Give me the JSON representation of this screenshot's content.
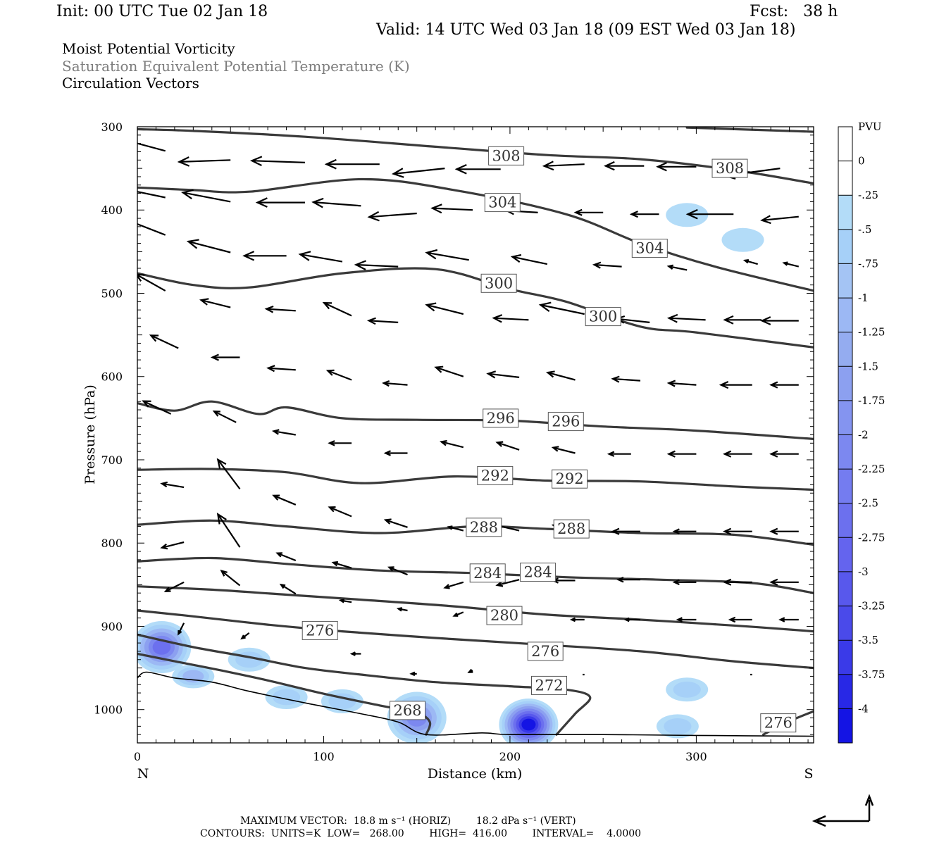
{
  "header": {
    "init": "Init: 00 UTC Tue 02 Jan 18",
    "fcst": "Fcst:   38 h",
    "valid": "Valid: 14 UTC Wed 03 Jan 18 (09 EST Wed 03 Jan 18)"
  },
  "titles": {
    "line1": "Moist Potential Vorticity",
    "line2": "Saturation Equivalent Potential Temperature (K)",
    "line3": "Circulation Vectors"
  },
  "colors": {
    "contour": "#3a3a3a",
    "pv_light": "#b3dcf8",
    "pv_mid": "#96b4f0",
    "pv_strong": "#5a6af0",
    "pv_max": "#1a1ae6"
  },
  "chart_data": {
    "type": "cross-section",
    "xlabel": "Distance (km)",
    "ylabel": "Pressure (hPa)",
    "xlim": [
      0,
      363
    ],
    "ylim": [
      1040,
      300
    ],
    "y_scale": "linear, pressure decreasing upward",
    "x_ticks": [
      "0",
      "100",
      "200",
      "300"
    ],
    "y_ticks": [
      "300",
      "400",
      "500",
      "600",
      "700",
      "800",
      "900",
      "1000"
    ],
    "end_labels": {
      "left": "N",
      "right": "S"
    },
    "colorbar": {
      "title": "PVU",
      "labels": [
        "0",
        "-.25",
        "-.5",
        "-.75",
        "-1",
        "-1.25",
        "-1.5",
        "-1.75",
        "-2",
        "-2.25",
        "-2.5",
        "-2.75",
        "-3",
        "-3.25",
        "-3.5",
        "-3.75",
        "-4"
      ],
      "colors": [
        "#ffffff",
        "#ffffff",
        "#b3dcf8",
        "#a6d0f8",
        "#a4c4f4",
        "#9cb8f4",
        "#94acf0",
        "#8ca0f0",
        "#8494f0",
        "#7c88f0",
        "#747cf0",
        "#6c70ee",
        "#6464ee",
        "#5858ec",
        "#4a4aea",
        "#3a3ae8",
        "#2828e6",
        "#1414e4"
      ]
    },
    "terrain_pressure": [
      [
        0,
        962
      ],
      [
        5,
        955
      ],
      [
        20,
        962
      ],
      [
        40,
        967
      ],
      [
        60,
        978
      ],
      [
        90,
        992
      ],
      [
        120,
        1005
      ],
      [
        140,
        1015
      ],
      [
        155,
        1030
      ],
      [
        185,
        1028
      ],
      [
        200,
        1030
      ],
      [
        250,
        1030
      ],
      [
        300,
        1031
      ],
      [
        363,
        1032
      ]
    ],
    "theta_e_contours": [
      {
        "value": 308,
        "labels": [
          "308",
          "308"
        ],
        "points": [
          [
            0,
            303
          ],
          [
            30,
            305
          ],
          [
            90,
            312
          ],
          [
            160,
            324
          ],
          [
            220,
            334
          ],
          [
            270,
            339
          ],
          [
            320,
            352
          ],
          [
            363,
            368
          ]
        ]
      },
      {
        "value": 308,
        "labels": [],
        "points": [
          [
            295,
            301
          ],
          [
            363,
            306
          ]
        ]
      },
      {
        "value": 304,
        "labels": [
          "304",
          "304"
        ],
        "points": [
          [
            0,
            373
          ],
          [
            30,
            376
          ],
          [
            60,
            378
          ],
          [
            120,
            363
          ],
          [
            170,
            376
          ],
          [
            230,
            405
          ],
          [
            270,
            440
          ],
          [
            310,
            468
          ],
          [
            363,
            497
          ]
        ]
      },
      {
        "value": 300,
        "labels": [
          "300",
          "300"
        ],
        "points": [
          [
            0,
            476
          ],
          [
            30,
            490
          ],
          [
            60,
            493
          ],
          [
            110,
            476
          ],
          [
            160,
            471
          ],
          [
            200,
            495
          ],
          [
            230,
            510
          ],
          [
            270,
            540
          ],
          [
            300,
            547
          ],
          [
            363,
            565
          ]
        ]
      },
      {
        "value": 296,
        "labels": [
          "296",
          "296"
        ],
        "points": [
          [
            0,
            632
          ],
          [
            20,
            641
          ],
          [
            40,
            630
          ],
          [
            65,
            645
          ],
          [
            80,
            637
          ],
          [
            110,
            650
          ],
          [
            150,
            652
          ],
          [
            200,
            653
          ],
          [
            250,
            660
          ],
          [
            300,
            665
          ],
          [
            363,
            675
          ]
        ]
      },
      {
        "value": 292,
        "labels": [
          "292",
          "292"
        ],
        "points": [
          [
            0,
            712
          ],
          [
            40,
            711
          ],
          [
            80,
            715
          ],
          [
            120,
            728
          ],
          [
            170,
            720
          ],
          [
            220,
            725
          ],
          [
            270,
            726
          ],
          [
            320,
            732
          ],
          [
            363,
            736
          ]
        ]
      },
      {
        "value": 288,
        "labels": [
          "288",
          "288"
        ],
        "points": [
          [
            0,
            778
          ],
          [
            40,
            773
          ],
          [
            80,
            780
          ],
          [
            130,
            788
          ],
          [
            180,
            780
          ],
          [
            220,
            783
          ],
          [
            270,
            788
          ],
          [
            320,
            790
          ],
          [
            363,
            802
          ]
        ]
      },
      {
        "value": 284,
        "labels": [
          "284",
          "284"
        ],
        "points": [
          [
            0,
            822
          ],
          [
            40,
            818
          ],
          [
            80,
            825
          ],
          [
            130,
            833
          ],
          [
            180,
            836
          ],
          [
            230,
            841
          ],
          [
            280,
            844
          ],
          [
            330,
            848
          ],
          [
            363,
            860
          ]
        ]
      },
      {
        "value": 280,
        "labels": [
          "280"
        ],
        "points": [
          [
            0,
            852
          ],
          [
            40,
            856
          ],
          [
            80,
            862
          ],
          [
            120,
            868
          ],
          [
            170,
            876
          ],
          [
            220,
            886
          ],
          [
            270,
            892
          ],
          [
            320,
            899
          ],
          [
            363,
            906
          ]
        ]
      },
      {
        "value": 276,
        "labels": [
          "276",
          "276",
          "276"
        ],
        "points": [
          [
            0,
            881
          ],
          [
            30,
            888
          ],
          [
            70,
            898
          ],
          [
            110,
            906
          ],
          [
            160,
            914
          ],
          [
            210,
            921
          ],
          [
            270,
            930
          ],
          [
            320,
            942
          ],
          [
            363,
            950
          ]
        ]
      },
      {
        "value": 272,
        "labels": [
          "272"
        ],
        "points": [
          [
            0,
            910
          ],
          [
            30,
            925
          ],
          [
            60,
            937
          ],
          [
            90,
            950
          ],
          [
            120,
            958
          ],
          [
            160,
            967
          ],
          [
            200,
            972
          ],
          [
            230,
            976
          ],
          [
            243,
            985
          ],
          [
            235,
            1005
          ],
          [
            225,
            1030
          ]
        ]
      },
      {
        "value": 268,
        "labels": [
          "268"
        ],
        "points": [
          [
            0,
            933
          ],
          [
            20,
            942
          ],
          [
            45,
            953
          ],
          [
            70,
            965
          ],
          [
            100,
            981
          ],
          [
            130,
            995
          ],
          [
            150,
            1004
          ],
          [
            157,
            1015
          ],
          [
            155,
            1030
          ]
        ]
      },
      {
        "value": 276,
        "labels": [],
        "points": [
          [
            336,
            1030
          ],
          [
            350,
            1014
          ],
          [
            363,
            1002
          ]
        ]
      }
    ],
    "contour_label_positions": [
      [
        "308",
        198,
        335
      ],
      [
        "308",
        318,
        350
      ],
      [
        "304",
        196,
        391
      ],
      [
        "304",
        275,
        446
      ],
      [
        "300",
        194,
        488
      ],
      [
        "300",
        250,
        528
      ],
      [
        "296",
        195,
        650
      ],
      [
        "296",
        230,
        654
      ],
      [
        "292",
        192,
        719
      ],
      [
        "292",
        232,
        723
      ],
      [
        "288",
        186,
        781
      ],
      [
        "288",
        233,
        783
      ],
      [
        "284",
        188,
        836
      ],
      [
        "284",
        215,
        835
      ],
      [
        "280",
        197,
        887
      ],
      [
        "276",
        98,
        905
      ],
      [
        "276",
        219,
        930
      ],
      [
        "276",
        344,
        1016
      ],
      [
        "272",
        221,
        971
      ],
      [
        "268",
        145,
        1001
      ]
    ],
    "pv_anomalies_pvu": [
      {
        "x": 13,
        "p": 925,
        "min_pvu": -2.5
      },
      {
        "x": 60,
        "p": 940,
        "min_pvu": -0.75
      },
      {
        "x": 30,
        "p": 960,
        "min_pvu": -1.0
      },
      {
        "x": 80,
        "p": 985,
        "min_pvu": -0.75
      },
      {
        "x": 110,
        "p": 990,
        "min_pvu": -0.5
      },
      {
        "x": 150,
        "p": 1010,
        "min_pvu": -2.0
      },
      {
        "x": 210,
        "p": 1018,
        "min_pvu": -4.0
      },
      {
        "x": 295,
        "p": 976,
        "min_pvu": -0.5
      },
      {
        "x": 290,
        "p": 1020,
        "min_pvu": -0.5
      },
      {
        "x": 325,
        "p": 436,
        "min_pvu": -0.25
      },
      {
        "x": 295,
        "p": 406,
        "min_pvu": -0.25
      }
    ],
    "circulation_vectors": [
      [
        15,
        329,
        -26,
        -7
      ],
      [
        50,
        340,
        -28,
        1
      ],
      [
        90,
        343,
        -29,
        -1
      ],
      [
        130,
        345,
        -29,
        0
      ],
      [
        165,
        350,
        -28,
        3
      ],
      [
        195,
        351,
        -24,
        0
      ],
      [
        240,
        345,
        -22,
        1
      ],
      [
        272,
        347,
        -21,
        0
      ],
      [
        300,
        348,
        -21,
        0
      ],
      [
        345,
        350,
        -30,
        4
      ],
      [
        15,
        385,
        -24,
        -5
      ],
      [
        50,
        390,
        -26,
        -5
      ],
      [
        90,
        391,
        -26,
        0
      ],
      [
        120,
        395,
        -26,
        -2
      ],
      [
        150,
        404,
        -26,
        2
      ],
      [
        180,
        400,
        -22,
        -1
      ],
      [
        215,
        403,
        -17,
        -1
      ],
      [
        250,
        403,
        -15,
        0
      ],
      [
        280,
        405,
        -15,
        0
      ],
      [
        320,
        405,
        -25,
        0
      ],
      [
        355,
        408,
        -20,
        2
      ],
      [
        15,
        430,
        -23,
        -9
      ],
      [
        50,
        451,
        -23,
        -6
      ],
      [
        80,
        455,
        -23,
        0
      ],
      [
        110,
        462,
        -23,
        -4
      ],
      [
        140,
        468,
        -23,
        -1
      ],
      [
        178,
        460,
        -23,
        -4
      ],
      [
        220,
        465,
        -19,
        -4
      ],
      [
        260,
        468,
        -15,
        -1
      ],
      [
        295,
        472,
        -10,
        -2
      ],
      [
        333,
        465,
        -7,
        -2
      ],
      [
        355,
        468,
        -8,
        -2
      ],
      [
        15,
        497,
        -16,
        -9
      ],
      [
        50,
        517,
        -16,
        -4
      ],
      [
        85,
        521,
        -16,
        -1
      ],
      [
        115,
        527,
        -15,
        -7
      ],
      [
        140,
        535,
        -16,
        -1
      ],
      [
        175,
        525,
        -20,
        -5
      ],
      [
        210,
        532,
        -19,
        -1
      ],
      [
        240,
        525,
        -24,
        -5
      ],
      [
        275,
        535,
        -18,
        -2
      ],
      [
        305,
        532,
        -20,
        -1
      ],
      [
        335,
        532,
        -20,
        0
      ],
      [
        355,
        533,
        -20,
        0
      ],
      [
        22,
        566,
        -15,
        -7
      ],
      [
        55,
        577,
        -15,
        0
      ],
      [
        85,
        592,
        -15,
        -1
      ],
      [
        115,
        604,
        -13,
        -5
      ],
      [
        145,
        610,
        -13,
        -1
      ],
      [
        175,
        600,
        -15,
        -5
      ],
      [
        205,
        601,
        -17,
        -2
      ],
      [
        235,
        604,
        -15,
        -4
      ],
      [
        270,
        605,
        -15,
        -1
      ],
      [
        300,
        610,
        -15,
        -1
      ],
      [
        330,
        610,
        -17,
        0
      ],
      [
        355,
        610,
        -15,
        0
      ],
      [
        18,
        645,
        -15,
        -7
      ],
      [
        53,
        655,
        -12,
        -6
      ],
      [
        85,
        670,
        -12,
        -2
      ],
      [
        115,
        680,
        -12,
        0
      ],
      [
        145,
        692,
        -12,
        0
      ],
      [
        175,
        685,
        -12,
        -3
      ],
      [
        205,
        688,
        -12,
        -4
      ],
      [
        235,
        692,
        -12,
        -3
      ],
      [
        265,
        693,
        -12,
        0
      ],
      [
        300,
        693,
        -15,
        0
      ],
      [
        330,
        693,
        -15,
        0
      ],
      [
        355,
        693,
        -15,
        0
      ],
      [
        25,
        733,
        -12,
        -2
      ],
      [
        55,
        735,
        -12,
        -16
      ],
      [
        85,
        754,
        -12,
        -5
      ],
      [
        115,
        768,
        -12,
        -5
      ],
      [
        145,
        781,
        -12,
        -4
      ],
      [
        175,
        785,
        -8,
        -2
      ],
      [
        205,
        785,
        -13,
        -3
      ],
      [
        235,
        785,
        -12,
        -3
      ],
      [
        270,
        786,
        -15,
        0
      ],
      [
        300,
        786,
        -12,
        0
      ],
      [
        330,
        786,
        -15,
        0
      ],
      [
        355,
        786,
        -15,
        0
      ],
      [
        25,
        799,
        -12,
        3
      ],
      [
        55,
        805,
        -12,
        -18
      ],
      [
        85,
        821,
        -10,
        -4
      ],
      [
        115,
        830,
        -10,
        -3
      ],
      [
        145,
        838,
        -10,
        -4
      ],
      [
        175,
        847,
        -10,
        3
      ],
      [
        205,
        844,
        -12,
        3
      ],
      [
        235,
        845,
        -12,
        0
      ],
      [
        270,
        844,
        -12,
        0
      ],
      [
        300,
        847,
        -12,
        0
      ],
      [
        330,
        847,
        -15,
        0
      ],
      [
        355,
        847,
        -15,
        0
      ],
      [
        25,
        847,
        -10,
        5
      ],
      [
        55,
        851,
        -10,
        -8
      ],
      [
        85,
        861,
        -8,
        -5
      ],
      [
        115,
        871,
        -6,
        -1
      ],
      [
        145,
        881,
        -5,
        -1
      ],
      [
        175,
        883,
        -5,
        2
      ],
      [
        205,
        892,
        -5,
        2
      ],
      [
        240,
        892,
        -7,
        0
      ],
      [
        270,
        892,
        -8,
        0
      ],
      [
        300,
        892,
        -10,
        0
      ],
      [
        330,
        892,
        -12,
        0
      ],
      [
        355,
        892,
        -10,
        0
      ],
      [
        25,
        896,
        -3,
        6
      ],
      [
        60,
        908,
        -4,
        3
      ],
      [
        120,
        933,
        -5,
        0
      ],
      [
        150,
        957,
        -3,
        0
      ],
      [
        180,
        953,
        -2,
        1
      ],
      [
        240,
        958,
        -1,
        0
      ],
      [
        330,
        958,
        -1,
        0
      ]
    ]
  },
  "footer": {
    "line1": "MAXIMUM VECTOR:  18.8 m s⁻¹ (HORIZ)        18.2 dPa s⁻¹ (VERT)",
    "line2": "CONTOURS:  UNITS=K  LOW=   268.00        HIGH=  416.00        INTERVAL=    4.0000"
  }
}
